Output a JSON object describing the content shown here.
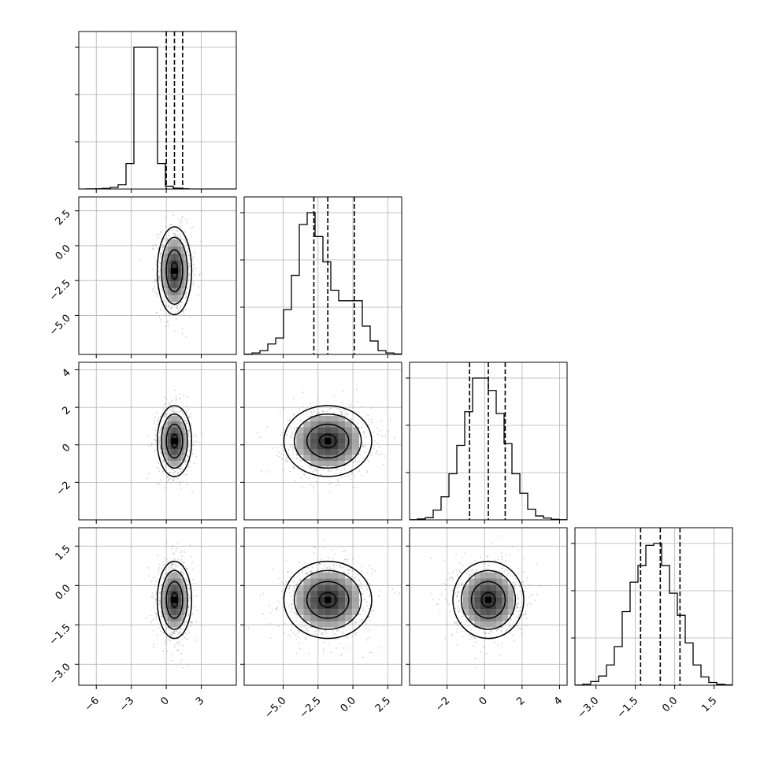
{
  "chart_data": {
    "type": "corner",
    "variables": [
      {
        "id": "p1",
        "range": [
          -7.5,
          6.0
        ],
        "ticks": [
          -6,
          -3,
          0,
          3
        ],
        "tick_labels": [
          "−6",
          "−3",
          "0",
          "3"
        ],
        "quantiles": [
          0.0,
          0.7,
          1.4
        ],
        "mean": 0.7,
        "sd": 0.7
      },
      {
        "id": "p2",
        "range": [
          -7.8,
          3.5
        ],
        "ticks": [
          -5.0,
          -2.5,
          0.0,
          2.5
        ],
        "tick_labels": [
          "−5.0",
          "−2.5",
          "0.0",
          "2.5"
        ],
        "quantiles": [
          -2.8,
          -1.8,
          0.1
        ],
        "mean": -1.8,
        "sd": 1.5
      },
      {
        "id": "p3",
        "range": [
          -4.0,
          4.4
        ],
        "ticks": [
          -2,
          0,
          2,
          4
        ],
        "tick_labels": [
          "−2",
          "0",
          "2",
          "4"
        ],
        "quantiles": [
          -0.8,
          0.2,
          1.1
        ],
        "mean": 0.2,
        "sd": 0.9
      },
      {
        "id": "p4",
        "range": [
          -3.8,
          2.2
        ],
        "ticks": [
          -3.0,
          -1.5,
          0.0,
          1.5
        ],
        "tick_labels": [
          "−3.0",
          "−1.5",
          "0.0",
          "1.5"
        ],
        "quantiles": [
          -1.3,
          -0.55,
          0.2
        ],
        "mean": -0.55,
        "sd": 0.7
      }
    ],
    "histogram_bins": 20,
    "histograms": [
      {
        "var": "p1",
        "counts": [
          0,
          1,
          2,
          5,
          12,
          30,
          180,
          1000,
          1000,
          1000,
          180,
          20,
          6,
          2,
          0,
          0,
          0,
          0,
          0,
          0
        ]
      },
      {
        "var": "p2",
        "counts": [
          2,
          10,
          25,
          70,
          110,
          300,
          530,
          870,
          950,
          790,
          620,
          430,
          360,
          360,
          360,
          190,
          90,
          25,
          10,
          3
        ]
      },
      {
        "var": "p3",
        "counts": [
          1,
          5,
          12,
          55,
          130,
          260,
          420,
          610,
          800,
          800,
          730,
          600,
          430,
          260,
          150,
          60,
          22,
          10,
          3,
          1
        ]
      },
      {
        "var": "p4",
        "counts": [
          1,
          6,
          20,
          50,
          110,
          210,
          400,
          560,
          650,
          760,
          770,
          650,
          500,
          380,
          230,
          110,
          45,
          15,
          5,
          2
        ]
      }
    ],
    "grid": true,
    "series": []
  }
}
